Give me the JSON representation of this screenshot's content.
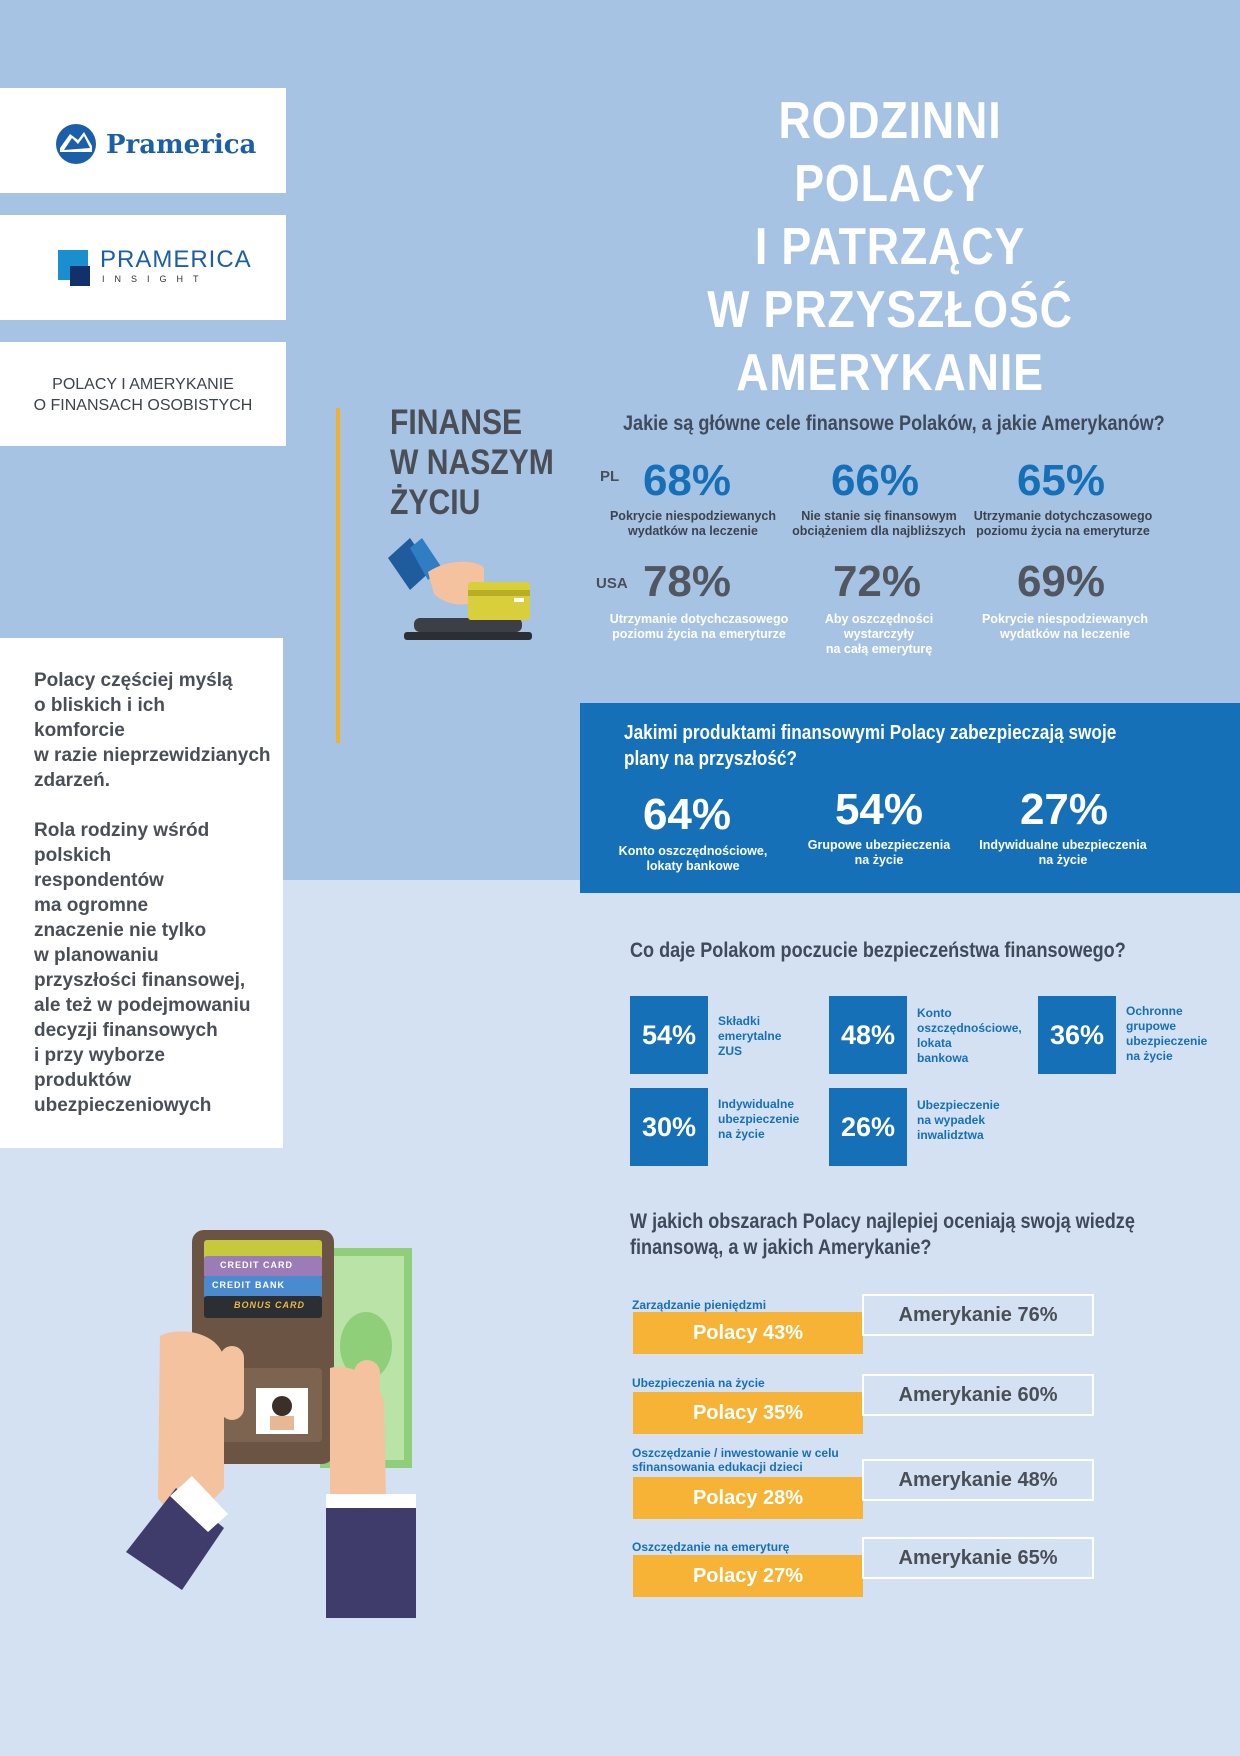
{
  "title": "RODZINNI POLACY\nI PATRZĄCY\nW PRZYSZŁOŚĆ\nAMERYKANIE",
  "logos": {
    "pramerica": "Pramerica",
    "insight_main": "PRAMERICA",
    "insight_sub": "INSIGHT"
  },
  "subtitle": "POLACY I AMERYKANIE\nO FINANSACH OSOBISTYCH",
  "sidebar_text": "Polacy częściej myślą\no bliskich i ich\nkomforcie\nw razie nieprzewidzianych\nzdarzeń.\n\nRola rodziny wśród\npolskich\nrespondentów\nma ogromne\nznaczenie nie tylko\nw planowaniu\nprzyszłości finansowej,\nale też w podejmowaniu\ndecyzji finansowych\ni przy wyborze\nproduktów\nubezpieczeniowych",
  "section_heading": "FINANSE\nW NASZYM\nŻYCIU",
  "goals": {
    "question": "Jakie są główne cele finansowe Polaków, a jakie Amerykanów?",
    "pl_label": "PL",
    "usa_label": "USA",
    "pl": [
      {
        "pct": "68%",
        "caption": "Pokrycie niespodziewanych\nwydatków na leczenie"
      },
      {
        "pct": "66%",
        "caption": "Nie stanie się finansowym\nobciążeniem dla najbliższych"
      },
      {
        "pct": "65%",
        "caption": "Utrzymanie dotychczasowego\npoziomu życia na emeryturze"
      }
    ],
    "usa": [
      {
        "pct": "78%",
        "caption": "Utrzymanie dotychczasowego\npoziomu życia na emeryturze"
      },
      {
        "pct": "72%",
        "caption": "Aby oszczędności\nwystarczyły\nna całą emeryturę"
      },
      {
        "pct": "69%",
        "caption": "Pokrycie niespodziewanych\nwydatków na leczenie"
      }
    ]
  },
  "products": {
    "question": "Jakimi produktami finansowymi Polacy zabezpieczają swoje\nplany na przyszłość?",
    "items": [
      {
        "pct": "64%",
        "caption": "Konto oszczędnościowe,\nlokaty bankowe"
      },
      {
        "pct": "54%",
        "caption": "Grupowe ubezpieczenia\nna życie"
      },
      {
        "pct": "27%",
        "caption": "Indywidualne ubezpieczenia\nna życie"
      }
    ]
  },
  "security": {
    "question": "Co daje Polakom poczucie bezpieczeństwa finansowego?",
    "items": [
      {
        "pct": "54%",
        "label": "Składki\nemerytalne\nZUS"
      },
      {
        "pct": "48%",
        "label": "Konto\noszczędnościowe,\nlokata\nbankowa"
      },
      {
        "pct": "36%",
        "label": "Ochronne\ngrupowe\nubezpieczenie\nna życie"
      },
      {
        "pct": "30%",
        "label": "Indywidualne\nubezpieczenie\nna życie"
      },
      {
        "pct": "26%",
        "label": "Ubezpieczenie\nna wypadek\ninwalidztwa"
      }
    ]
  },
  "knowledge": {
    "question": "W jakich obszarach Polacy najlepiej oceniają swoją wiedzę\nfinansową, a w jakich Amerykanie?",
    "items": [
      {
        "label": "Zarządzanie pieniędzmi",
        "pl": "Polacy 43%",
        "us": "Amerykanie 76%"
      },
      {
        "label": "Ubezpieczenia na życie",
        "pl": "Polacy 35%",
        "us": "Amerykanie 60%"
      },
      {
        "label": "Oszczędzanie / inwestowanie w celu\nsfinansowania edukacji dzieci",
        "pl": "Polacy 28%",
        "us": "Amerykanie 48%"
      },
      {
        "label": "Oszczędzanie na emeryturę",
        "pl": "Polacy 27%",
        "us": "Amerykanie 65%"
      }
    ]
  },
  "card_texts": {
    "credit_card": "CREDIT CARD",
    "credit_bank": "CREDIT BANK",
    "bonus_card": "BONUS CARD"
  },
  "colors": {
    "top_bg": "#a7c3e4",
    "bottom_bg": "#d3e1f2",
    "blue": "#1570b8",
    "yellow": "#f6b335",
    "gray_text": "#4a4f57"
  },
  "icons": [
    "pramerica-rock-logo-icon",
    "insight-squares-logo-icon",
    "hand-card-terminal-icon",
    "hands-wallet-money-icon"
  ]
}
